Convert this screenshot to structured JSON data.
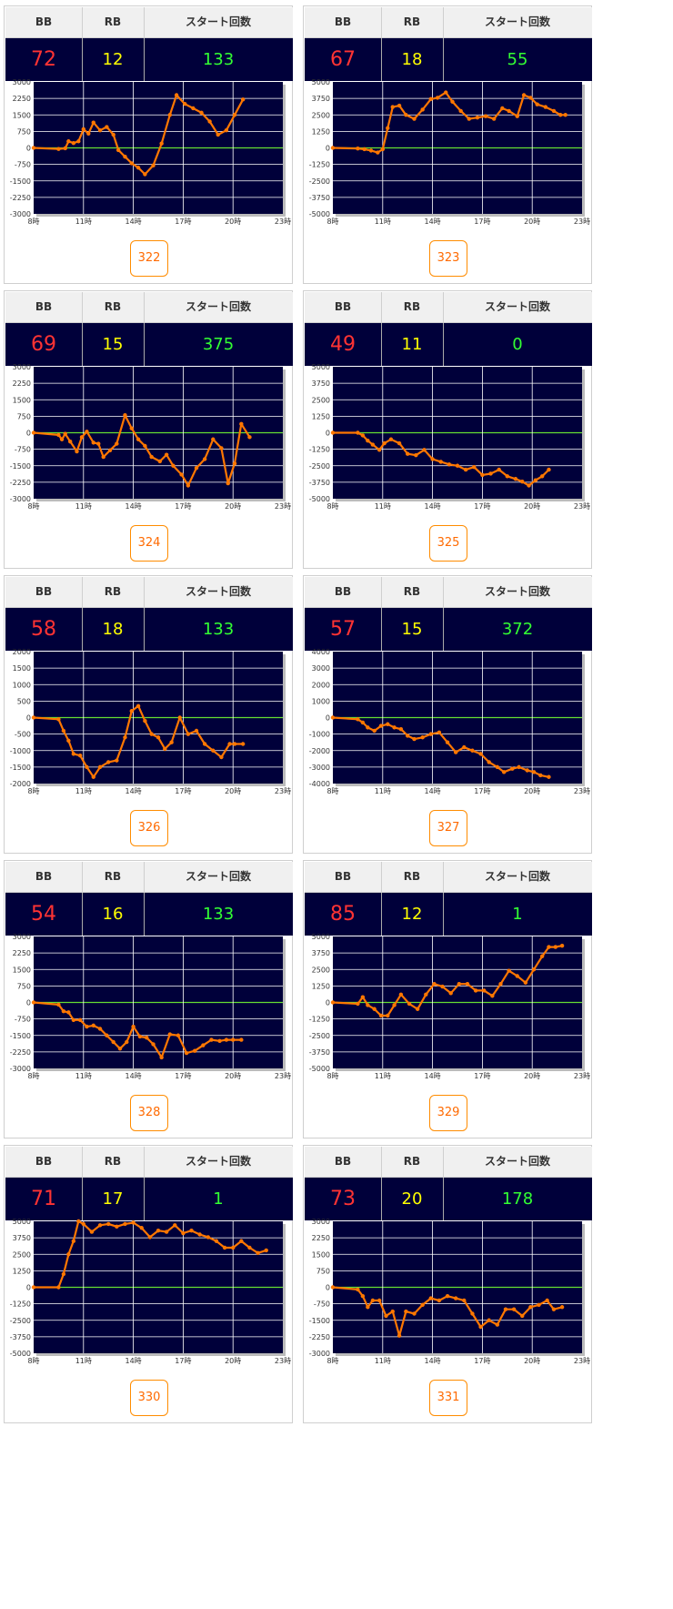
{
  "headers": {
    "bb": "BB",
    "rb": "RB",
    "start": "スタート回数"
  },
  "colors": {
    "bb": "#ff3333",
    "rb": "#ffff00",
    "start": "#33ff33",
    "panel": "#00003a",
    "line": "#ff7700",
    "zero": "#66dd33"
  },
  "x_ticks": [
    "8時",
    "11時",
    "14時",
    "17時",
    "20時",
    "23時"
  ],
  "machines": [
    {
      "id": "322",
      "bb": "72",
      "rb": "12",
      "start": "133",
      "chart_data": {
        "type": "line",
        "xlim": [
          8,
          23
        ],
        "ylim": [
          -3000,
          3000
        ],
        "yticks": [
          "3000",
          "2250",
          "1500",
          "750",
          "0",
          "-750",
          "-1500",
          "-2250",
          "-3000"
        ],
        "x": [
          8,
          9.5,
          9.9,
          10.1,
          10.4,
          10.7,
          11.0,
          11.3,
          11.6,
          12.0,
          12.4,
          12.8,
          13.1,
          13.5,
          13.9,
          14.3,
          14.7,
          15.2,
          15.7,
          16.2,
          16.6,
          17.1,
          17.6,
          18.1,
          18.6,
          19.1,
          19.6,
          20.1,
          20.6
        ],
        "y": [
          0,
          -50,
          -20,
          300,
          220,
          300,
          850,
          650,
          1150,
          800,
          950,
          600,
          -100,
          -400,
          -700,
          -900,
          -1200,
          -800,
          200,
          1500,
          2400,
          2000,
          1800,
          1600,
          1200,
          600,
          800,
          1500,
          2200
        ]
      }
    },
    {
      "id": "323",
      "bb": "67",
      "rb": "18",
      "start": "55",
      "chart_data": {
        "type": "line",
        "xlim": [
          8,
          23
        ],
        "ylim": [
          -5000,
          5000
        ],
        "yticks": [
          "5000",
          "3750",
          "2500",
          "1250",
          "0",
          "-1250",
          "-2500",
          "-3750",
          "-5000"
        ],
        "x": [
          8,
          9.5,
          9.9,
          10.3,
          10.7,
          11.0,
          11.3,
          11.6,
          12.0,
          12.4,
          12.9,
          13.4,
          13.9,
          14.3,
          14.8,
          15.2,
          15.7,
          16.2,
          16.7,
          17.2,
          17.7,
          18.2,
          18.6,
          19.1,
          19.5,
          19.9,
          20.3,
          20.8,
          21.3,
          21.7,
          22.0
        ],
        "y": [
          0,
          -50,
          -100,
          -200,
          -350,
          -100,
          1500,
          3100,
          3200,
          2500,
          2200,
          2900,
          3700,
          3800,
          4200,
          3500,
          2800,
          2200,
          2300,
          2400,
          2200,
          3000,
          2800,
          2400,
          4000,
          3800,
          3300,
          3100,
          2800,
          2500,
          2500
        ]
      }
    },
    {
      "id": "324",
      "bb": "69",
      "rb": "15",
      "start": "375",
      "chart_data": {
        "type": "line",
        "xlim": [
          8,
          23
        ],
        "ylim": [
          -3000,
          3000
        ],
        "yticks": [
          "3000",
          "2250",
          "1500",
          "750",
          "0",
          "-750",
          "-1500",
          "-2250",
          "-3000"
        ],
        "x": [
          8,
          9.5,
          9.7,
          9.9,
          10.2,
          10.6,
          10.9,
          11.2,
          11.6,
          11.9,
          12.2,
          12.6,
          13.0,
          13.5,
          13.9,
          14.3,
          14.7,
          15.1,
          15.6,
          16.0,
          16.4,
          16.9,
          17.3,
          17.8,
          18.3,
          18.8,
          19.3,
          19.7,
          20.1,
          20.5,
          21.0
        ],
        "y": [
          0,
          -100,
          -300,
          -50,
          -400,
          -850,
          -200,
          50,
          -450,
          -500,
          -1100,
          -800,
          -500,
          800,
          200,
          -300,
          -600,
          -1100,
          -1300,
          -1000,
          -1500,
          -1900,
          -2400,
          -1600,
          -1200,
          -300,
          -700,
          -2300,
          -1400,
          400,
          -200
        ]
      }
    },
    {
      "id": "325",
      "bb": "49",
      "rb": "11",
      "start": "0",
      "chart_data": {
        "type": "line",
        "xlim": [
          8,
          23
        ],
        "ylim": [
          -5000,
          5000
        ],
        "yticks": [
          "5000",
          "3750",
          "2500",
          "1250",
          "0",
          "-1250",
          "-2500",
          "-3750",
          "-5000"
        ],
        "x": [
          8,
          9.5,
          9.8,
          10.1,
          10.4,
          10.8,
          11.1,
          11.5,
          12.0,
          12.5,
          13.0,
          13.5,
          14.0,
          14.5,
          15.0,
          15.5,
          16.0,
          16.5,
          17.0,
          17.5,
          18.0,
          18.5,
          19.0,
          19.4,
          19.8,
          20.2,
          20.6,
          21.0
        ],
        "y": [
          0,
          0,
          -200,
          -600,
          -900,
          -1300,
          -800,
          -500,
          -800,
          -1600,
          -1700,
          -1300,
          -2000,
          -2200,
          -2400,
          -2500,
          -2800,
          -2600,
          -3200,
          -3100,
          -2800,
          -3300,
          -3500,
          -3700,
          -4000,
          -3600,
          -3300,
          -2800
        ]
      }
    },
    {
      "id": "326",
      "bb": "58",
      "rb": "18",
      "start": "133",
      "chart_data": {
        "type": "line",
        "xlim": [
          8,
          23
        ],
        "ylim": [
          -2000,
          2000
        ],
        "yticks": [
          "2000",
          "1500",
          "1000",
          "500",
          "0",
          "-500",
          "-1000",
          "-1500",
          "-2000"
        ],
        "x": [
          8,
          9.5,
          9.8,
          10.1,
          10.4,
          10.8,
          11.2,
          11.6,
          12.0,
          12.5,
          13.0,
          13.5,
          13.9,
          14.3,
          14.7,
          15.1,
          15.5,
          15.9,
          16.3,
          16.8,
          17.3,
          17.8,
          18.3,
          18.8,
          19.3,
          19.8,
          20.1,
          20.6
        ],
        "y": [
          0,
          -50,
          -400,
          -700,
          -1100,
          -1150,
          -1500,
          -1800,
          -1500,
          -1350,
          -1300,
          -600,
          200,
          350,
          -100,
          -500,
          -600,
          -950,
          -750,
          0,
          -500,
          -400,
          -800,
          -1000,
          -1200,
          -800,
          -800,
          -800
        ]
      }
    },
    {
      "id": "327",
      "bb": "57",
      "rb": "15",
      "start": "372",
      "chart_data": {
        "type": "line",
        "xlim": [
          8,
          23
        ],
        "ylim": [
          -4000,
          4000
        ],
        "yticks": [
          "4000",
          "3000",
          "2000",
          "1000",
          "0",
          "-1000",
          "-2000",
          "-3000",
          "-4000"
        ],
        "x": [
          8,
          9.5,
          9.8,
          10.1,
          10.5,
          10.9,
          11.3,
          11.7,
          12.1,
          12.5,
          12.9,
          13.4,
          13.9,
          14.4,
          14.9,
          15.4,
          15.9,
          16.4,
          16.9,
          17.4,
          17.9,
          18.3,
          18.8,
          19.2,
          19.7,
          20.1,
          20.5,
          21.0
        ],
        "y": [
          0,
          -100,
          -300,
          -600,
          -800,
          -500,
          -400,
          -600,
          -700,
          -1100,
          -1300,
          -1200,
          -1000,
          -900,
          -1500,
          -2100,
          -1800,
          -2000,
          -2200,
          -2700,
          -3000,
          -3300,
          -3100,
          -3000,
          -3200,
          -3300,
          -3500,
          -3600
        ]
      }
    },
    {
      "id": "328",
      "bb": "54",
      "rb": "16",
      "start": "133",
      "chart_data": {
        "type": "line",
        "xlim": [
          8,
          23
        ],
        "ylim": [
          -3000,
          3000
        ],
        "yticks": [
          "3000",
          "2250",
          "1500",
          "750",
          "0",
          "-750",
          "-1500",
          "-2250",
          "-3000"
        ],
        "x": [
          8,
          9.5,
          9.8,
          10.1,
          10.4,
          10.8,
          11.2,
          11.6,
          12.0,
          12.4,
          12.8,
          13.2,
          13.6,
          14.0,
          14.4,
          14.8,
          15.2,
          15.7,
          16.2,
          16.7,
          17.2,
          17.7,
          18.2,
          18.7,
          19.2,
          19.6,
          20.0,
          20.5
        ],
        "y": [
          0,
          -100,
          -400,
          -450,
          -800,
          -800,
          -1100,
          -1050,
          -1200,
          -1500,
          -1800,
          -2100,
          -1800,
          -1100,
          -1550,
          -1600,
          -1900,
          -2500,
          -1450,
          -1500,
          -2300,
          -2200,
          -1950,
          -1700,
          -1750,
          -1700,
          -1700,
          -1700
        ]
      }
    },
    {
      "id": "329",
      "bb": "85",
      "rb": "12",
      "start": "1",
      "chart_data": {
        "type": "line",
        "xlim": [
          8,
          23
        ],
        "ylim": [
          -5000,
          5000
        ],
        "yticks": [
          "5000",
          "3750",
          "2500",
          "1250",
          "0",
          "-1250",
          "-2500",
          "-3750",
          "-5000"
        ],
        "x": [
          8,
          9.5,
          9.8,
          10.1,
          10.5,
          10.9,
          11.3,
          11.7,
          12.1,
          12.6,
          13.1,
          13.6,
          14.1,
          14.6,
          15.1,
          15.6,
          16.1,
          16.6,
          17.1,
          17.6,
          18.1,
          18.6,
          19.1,
          19.6,
          20.1,
          20.6,
          21.0,
          21.4,
          21.8
        ],
        "y": [
          0,
          -100,
          400,
          -200,
          -500,
          -1000,
          -1000,
          -200,
          600,
          -100,
          -500,
          600,
          1400,
          1200,
          700,
          1400,
          1400,
          900,
          900,
          500,
          1400,
          2400,
          2000,
          1500,
          2500,
          3500,
          4200,
          4200,
          4300
        ]
      }
    },
    {
      "id": "330",
      "bb": "71",
      "rb": "17",
      "start": "1",
      "chart_data": {
        "type": "line",
        "xlim": [
          8,
          23
        ],
        "ylim": [
          -5000,
          5000
        ],
        "yticks": [
          "5000",
          "3750",
          "2500",
          "1250",
          "0",
          "-1250",
          "-2500",
          "-3750",
          "-5000"
        ],
        "x": [
          8,
          9.5,
          9.8,
          10.1,
          10.4,
          10.7,
          11.0,
          11.5,
          12.0,
          12.5,
          13.0,
          13.5,
          14.0,
          14.5,
          15.0,
          15.5,
          16.0,
          16.5,
          17.0,
          17.5,
          18.0,
          18.5,
          19.0,
          19.5,
          20.0,
          20.5,
          21.0,
          21.5,
          22.0
        ],
        "y": [
          0,
          0,
          1000,
          2500,
          3500,
          5000,
          4800,
          4200,
          4700,
          4800,
          4600,
          4800,
          4900,
          4500,
          3800,
          4300,
          4200,
          4700,
          4100,
          4300,
          4000,
          3800,
          3500,
          3000,
          3000,
          3500,
          3000,
          2600,
          2800
        ]
      }
    },
    {
      "id": "331",
      "bb": "73",
      "rb": "20",
      "start": "178",
      "chart_data": {
        "type": "line",
        "xlim": [
          8,
          23
        ],
        "ylim": [
          -3000,
          3000
        ],
        "yticks": [
          "3000",
          "2250",
          "1500",
          "750",
          "0",
          "-750",
          "-1500",
          "-2250",
          "-3000"
        ],
        "x": [
          8,
          9.5,
          9.8,
          10.1,
          10.4,
          10.8,
          11.2,
          11.6,
          12.0,
          12.4,
          12.9,
          13.4,
          13.9,
          14.4,
          14.9,
          15.4,
          15.9,
          16.4,
          16.9,
          17.4,
          17.9,
          18.4,
          18.9,
          19.4,
          19.9,
          20.4,
          20.9,
          21.3,
          21.8
        ],
        "y": [
          0,
          -100,
          -400,
          -900,
          -600,
          -600,
          -1300,
          -1100,
          -2200,
          -1100,
          -1200,
          -800,
          -500,
          -600,
          -400,
          -500,
          -600,
          -1200,
          -1800,
          -1500,
          -1700,
          -1000,
          -1000,
          -1300,
          -900,
          -800,
          -600,
          -1000,
          -900
        ]
      }
    }
  ]
}
